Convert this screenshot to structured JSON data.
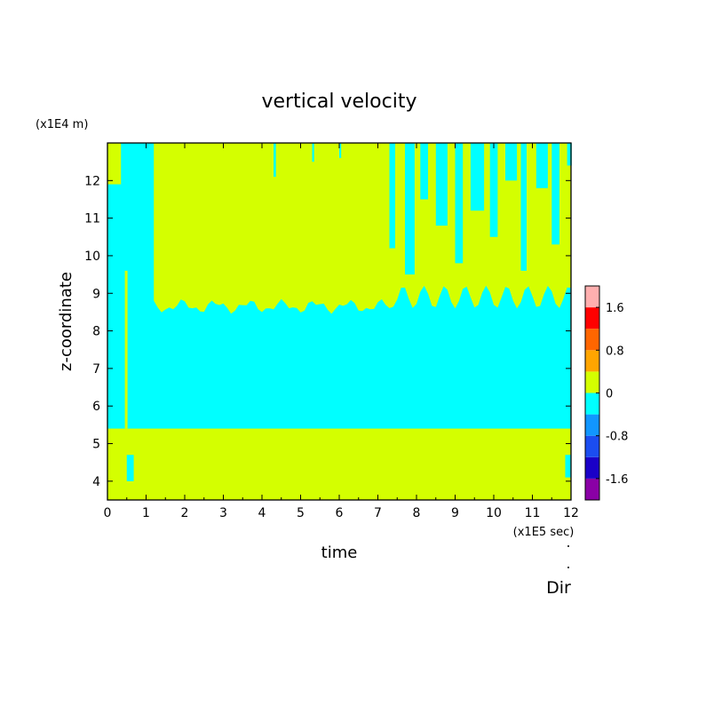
{
  "chart_data": {
    "type": "heatmap",
    "title": "vertical velocity",
    "xlabel": "time",
    "ylabel": "z-coordinate",
    "x_unit": "(x1E5 sec)",
    "y_unit": "(x1E4 m)",
    "xlim": [
      0,
      12
    ],
    "ylim": [
      3.5,
      13.0
    ],
    "x_ticks": [
      "0",
      "1",
      "2",
      "3",
      "4",
      "5",
      "6",
      "7",
      "8",
      "9",
      "10",
      "11",
      "12"
    ],
    "y_ticks": [
      "4",
      "5",
      "6",
      "7",
      "8",
      "9",
      "10",
      "11",
      "12"
    ],
    "grid": false,
    "colorbar": {
      "levels": [
        -2.0,
        -1.6,
        -1.2,
        -0.8,
        -0.4,
        0,
        0.4,
        0.8,
        1.2,
        1.6,
        2.0
      ],
      "colors": [
        "#8a00a6",
        "#1a00c8",
        "#1b4df0",
        "#1196ff",
        "#00ffff",
        "#d4ff00",
        "#ffa500",
        "#ff6600",
        "#ff0000",
        "#ffafaf"
      ],
      "tick_labels": [
        "1.6",
        "0.8",
        "0",
        "-0.8",
        "-1.6"
      ],
      "tick_values": [
        1.6,
        0.8,
        0,
        -0.8,
        -1.6
      ]
    },
    "regions": [
      {
        "name": "lower layer",
        "x": [
          0,
          12
        ],
        "y": [
          3.5,
          5.4
        ],
        "level": "0 to 0.4"
      },
      {
        "name": "middle layer",
        "x": [
          0,
          12
        ],
        "y": [
          5.4,
          8.7
        ],
        "level": "-0.4 to 0"
      },
      {
        "name": "upper layer",
        "x": [
          1.2,
          12
        ],
        "y": [
          8.7,
          13.0
        ],
        "level": "mixed, mostly 0 to 0.4"
      },
      {
        "name": "early column",
        "x": [
          0,
          1.2
        ],
        "y": [
          5.4,
          13.0
        ],
        "level": "-0.4 to 0"
      }
    ]
  },
  "footer_label": "Dir",
  "colors": {
    "positive": "#d4ff00",
    "negative": "#00ffff",
    "frame": "#000000"
  }
}
